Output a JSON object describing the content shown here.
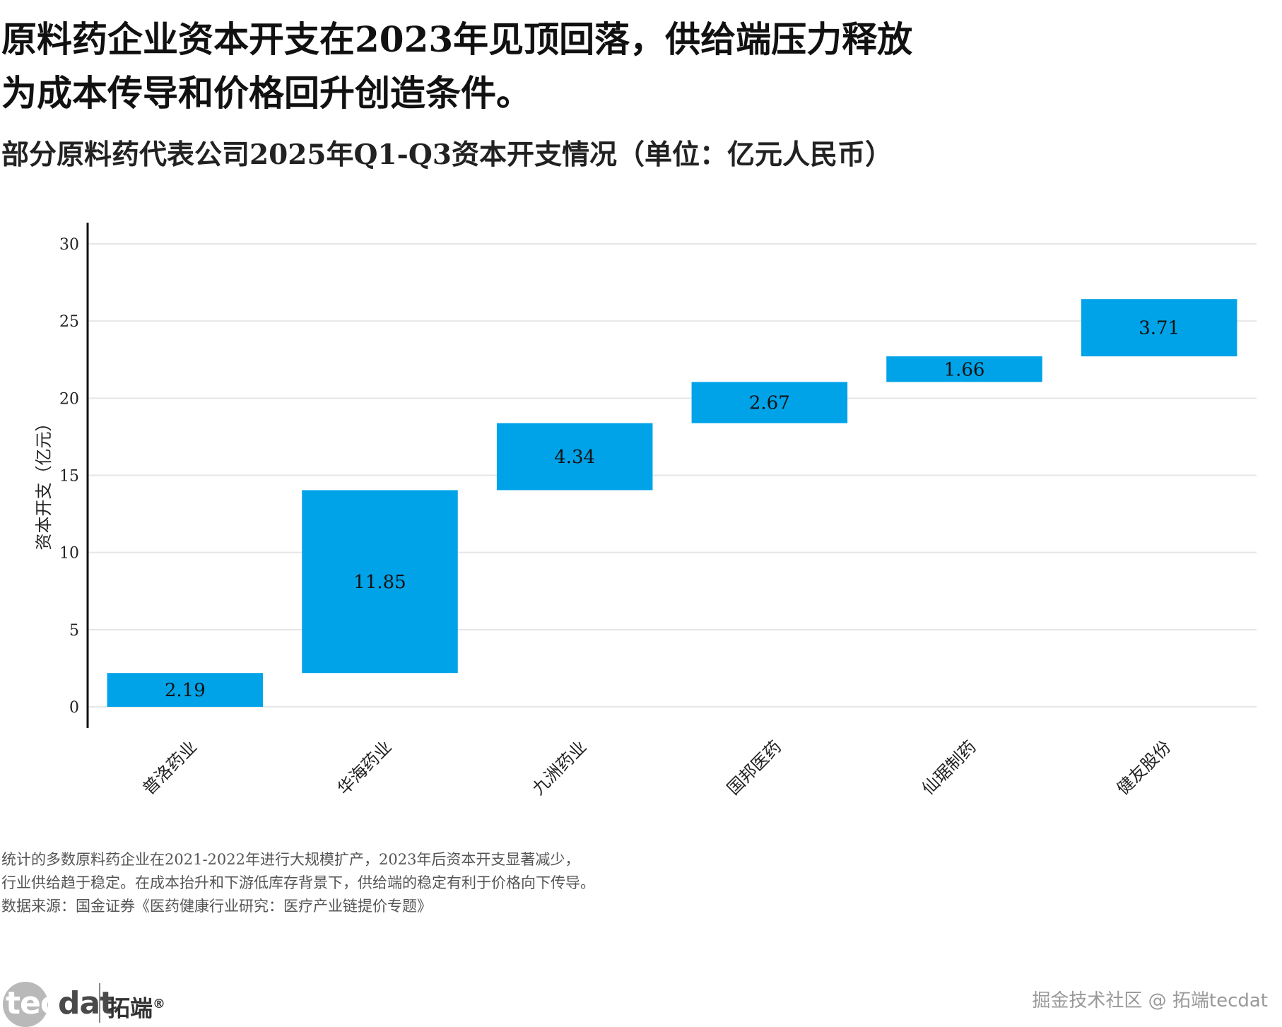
{
  "title_lines": [
    "原料药企业资本开支在2023年见顶回落，供给端压力释放",
    "为成本传导和价格回升创造条件。"
  ],
  "subtitle": "部分原料药代表公司2025年Q1-Q3资本开支情况（单位：亿元人民币）",
  "chart_data": {
    "type": "bar",
    "subtype": "waterfall",
    "categories": [
      "普洛药业",
      "华海药业",
      "九洲药业",
      "国邦医药",
      "仙琚制药",
      "健友股份"
    ],
    "values": [
      2.19,
      11.85,
      4.34,
      2.67,
      1.66,
      3.71
    ],
    "value_labels": [
      "2.19",
      "11.85",
      "4.34",
      "2.67",
      "1.66",
      "3.71"
    ],
    "ylabel": "资本开支（亿元）",
    "ylim": [
      0,
      30
    ],
    "yticks": [
      "0",
      "5",
      "10",
      "15",
      "20",
      "25",
      "30"
    ],
    "grid": true,
    "legend": "none",
    "bar_color": "#00a3e8"
  },
  "notes": [
    "统计的多数原料药企业在2021-2022年进行大规模扩产，2023年后资本开支显著减少，",
    "行业供给趋于稳定。在成本抬升和下游低库存背景下，供给端的稳定有利于价格向下传导。",
    "数据来源：国金证券《医药健康行业研究：医疗产业链提价专题》"
  ],
  "logo": {
    "part1": "tec",
    "part2": "dat",
    "cn": "拓端",
    "mark": "®"
  },
  "watermark": "掘金技术社区 @ 拓端tecdat"
}
